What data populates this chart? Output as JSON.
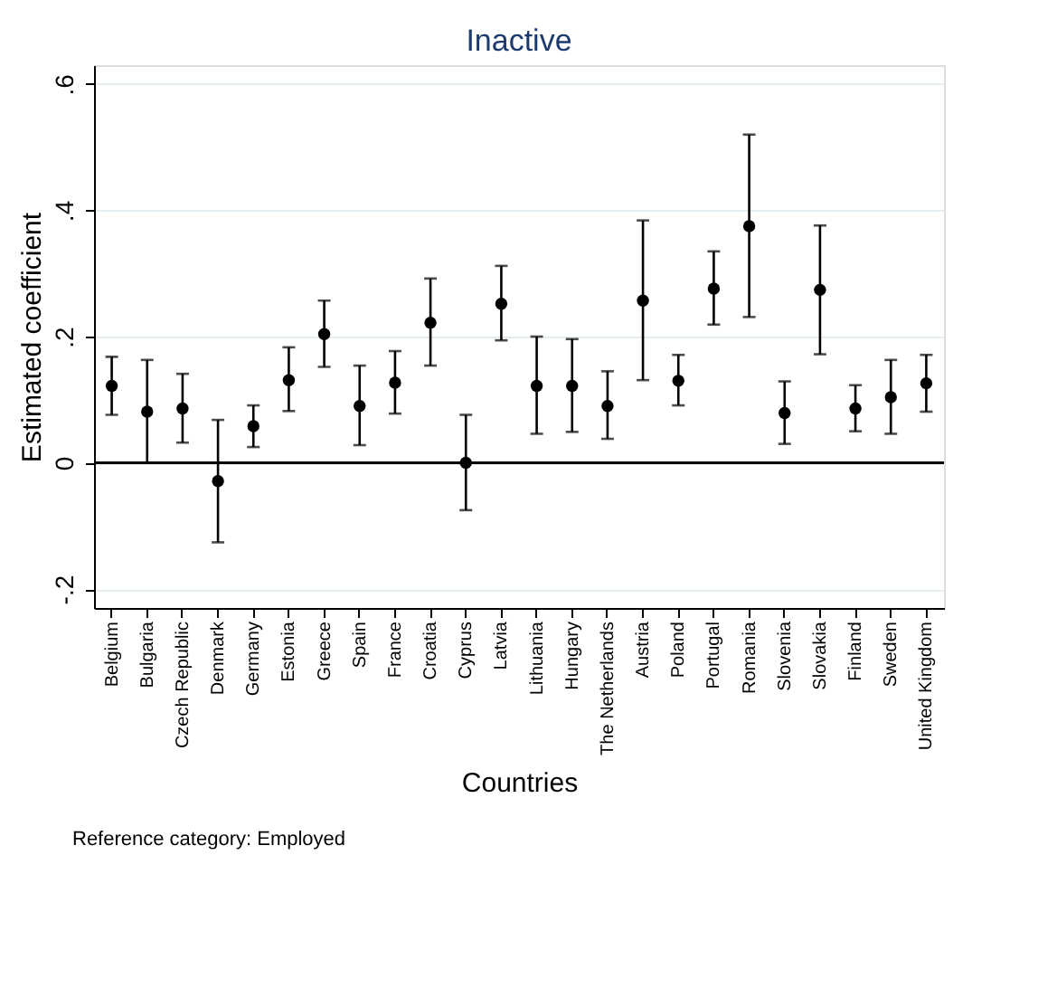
{
  "chart_data": {
    "type": "scatter",
    "title": "Inactive",
    "xlabel": "Countries",
    "ylabel": "Estimated coefficient",
    "annotations": [
      "Reference category: Employed"
    ],
    "categories": [
      "Belgium",
      "Bulgaria",
      "Czech Republic",
      "Denmark",
      "Germany",
      "Estonia",
      "Greece",
      "Spain",
      "France",
      "Croatia",
      "Cyprus",
      "Latvia",
      "Lithuania",
      "Hungary",
      "The Netherlands",
      "Austria",
      "Poland",
      "Portugal",
      "Romania",
      "Slovenia",
      "Slovakia",
      "Finland",
      "Sweden",
      "United Kingdom"
    ],
    "series": [
      {
        "color": "#000000",
        "values": [
          0.122,
          0.081,
          0.086,
          -0.029,
          0.058,
          0.131,
          0.204,
          0.09,
          0.127,
          0.222,
          0.0,
          0.252,
          0.122,
          0.122,
          0.09,
          0.257,
          0.13,
          0.276,
          0.375,
          0.079,
          0.274,
          0.086,
          0.104,
          0.126
        ],
        "errors": [
          [
            0.076,
            0.168
          ],
          [
            0.0,
            0.163
          ],
          [
            0.032,
            0.141
          ],
          [
            -0.126,
            0.068
          ],
          [
            0.025,
            0.091
          ],
          [
            0.082,
            0.183
          ],
          [
            0.152,
            0.257
          ],
          [
            0.028,
            0.154
          ],
          [
            0.078,
            0.177
          ],
          [
            0.154,
            0.292
          ],
          [
            -0.075,
            0.076
          ],
          [
            0.194,
            0.312
          ],
          [
            0.046,
            0.2
          ],
          [
            0.049,
            0.196
          ],
          [
            0.038,
            0.145
          ],
          [
            0.131,
            0.384
          ],
          [
            0.091,
            0.171
          ],
          [
            0.219,
            0.335
          ],
          [
            0.231,
            0.52
          ],
          [
            0.03,
            0.129
          ],
          [
            0.172,
            0.376
          ],
          [
            0.05,
            0.123
          ],
          [
            0.046,
            0.163
          ],
          [
            0.081,
            0.171
          ]
        ]
      }
    ],
    "ylim": [
      -0.23,
      0.63
    ],
    "yticks": [
      {
        "value": -0.2,
        "label": "-.2"
      },
      {
        "value": 0,
        "label": "0"
      },
      {
        "value": 0.2,
        "label": ".2"
      },
      {
        "value": 0.4,
        "label": ".4"
      },
      {
        "value": 0.6,
        "label": ".6"
      }
    ],
    "ref_lines": [
      {
        "axis": "y",
        "value": 0,
        "color": "#000000"
      }
    ],
    "grid": "y",
    "marker": "circle"
  }
}
